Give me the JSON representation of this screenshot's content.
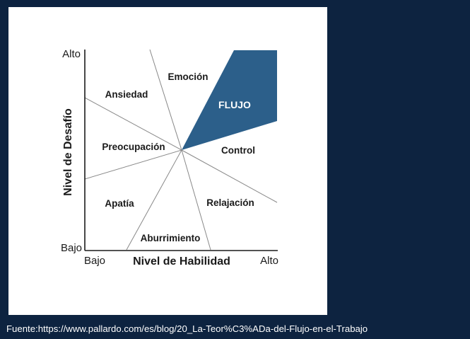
{
  "diagram": {
    "y_axis": {
      "title": "Nivel de Desafío",
      "high": "Alto",
      "low": "Bajo"
    },
    "x_axis": {
      "title": "Nivel de Habilidad",
      "low": "Bajo",
      "high": "Alto"
    },
    "regions": {
      "emocion": "Emoción",
      "ansiedad": "Ansiedad",
      "flujo": "FLUJO",
      "preocupacion": "Preocupación",
      "control": "Control",
      "apatia": "Apatía",
      "relajacion": "Relajación",
      "aburrimiento": "Aburrimiento"
    },
    "colors": {
      "flujo": "#2c5f8a",
      "background": "#0d2340",
      "lines": "#888888"
    }
  },
  "source_caption": "Fuente:https://www.pallardo.com/es/blog/20_La-Teor%C3%ADa-del-Flujo-en-el-Trabajo"
}
